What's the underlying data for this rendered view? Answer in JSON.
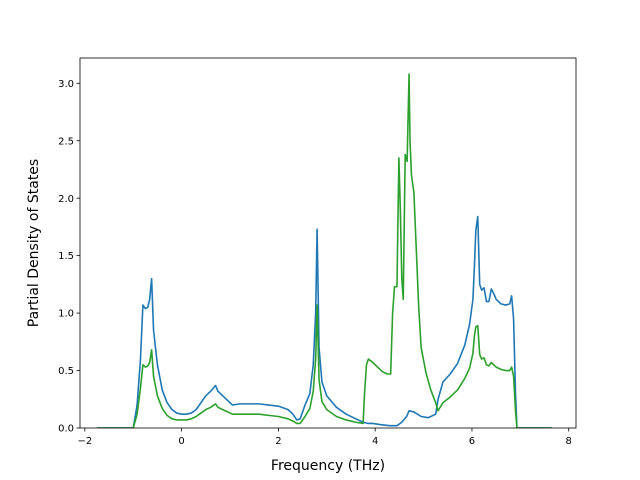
{
  "chart_data": {
    "type": "line",
    "title": "",
    "xlabel": "Frequency (THz)",
    "ylabel": "Partial Density of States",
    "xlim": [
      -2.1,
      8.15
    ],
    "ylim": [
      0,
      3.22
    ],
    "xticks": [
      -2,
      0,
      2,
      4,
      6,
      8
    ],
    "xtick_labels": [
      "−2",
      "0",
      "2",
      "4",
      "6",
      "8"
    ],
    "yticks": [
      0,
      0.5,
      1.0,
      1.5,
      2.0,
      2.5,
      3.0
    ],
    "ytick_labels": [
      "0.0",
      "0.5",
      "1.0",
      "1.5",
      "2.0",
      "2.5",
      "3.0"
    ],
    "grid": false,
    "legend": false,
    "series": [
      {
        "color": "#1f77b4",
        "points": [
          [
            -1.75,
            0.0
          ],
          [
            -1.0,
            0.0
          ],
          [
            -0.92,
            0.2
          ],
          [
            -0.85,
            0.6
          ],
          [
            -0.8,
            1.07
          ],
          [
            -0.75,
            1.04
          ],
          [
            -0.7,
            1.05
          ],
          [
            -0.66,
            1.12
          ],
          [
            -0.62,
            1.3
          ],
          [
            -0.58,
            0.85
          ],
          [
            -0.5,
            0.55
          ],
          [
            -0.4,
            0.33
          ],
          [
            -0.3,
            0.22
          ],
          [
            -0.2,
            0.16
          ],
          [
            -0.1,
            0.13
          ],
          [
            0.0,
            0.12
          ],
          [
            0.1,
            0.12
          ],
          [
            0.2,
            0.13
          ],
          [
            0.3,
            0.16
          ],
          [
            0.4,
            0.22
          ],
          [
            0.5,
            0.28
          ],
          [
            0.6,
            0.32
          ],
          [
            0.7,
            0.37
          ],
          [
            0.75,
            0.32
          ],
          [
            0.85,
            0.28
          ],
          [
            0.95,
            0.24
          ],
          [
            1.05,
            0.2
          ],
          [
            1.2,
            0.21
          ],
          [
            1.4,
            0.21
          ],
          [
            1.6,
            0.21
          ],
          [
            1.8,
            0.2
          ],
          [
            2.0,
            0.19
          ],
          [
            2.2,
            0.16
          ],
          [
            2.3,
            0.12
          ],
          [
            2.38,
            0.07
          ],
          [
            2.45,
            0.08
          ],
          [
            2.55,
            0.2
          ],
          [
            2.65,
            0.3
          ],
          [
            2.72,
            0.55
          ],
          [
            2.77,
            1.0
          ],
          [
            2.8,
            1.73
          ],
          [
            2.84,
            0.7
          ],
          [
            2.9,
            0.4
          ],
          [
            3.0,
            0.28
          ],
          [
            3.2,
            0.18
          ],
          [
            3.4,
            0.12
          ],
          [
            3.6,
            0.08
          ],
          [
            3.75,
            0.05
          ],
          [
            3.85,
            0.04
          ],
          [
            3.95,
            0.04
          ],
          [
            4.1,
            0.03
          ],
          [
            4.3,
            0.02
          ],
          [
            4.45,
            0.02
          ],
          [
            4.55,
            0.05
          ],
          [
            4.65,
            0.1
          ],
          [
            4.7,
            0.15
          ],
          [
            4.8,
            0.14
          ],
          [
            4.95,
            0.1
          ],
          [
            5.1,
            0.09
          ],
          [
            5.25,
            0.12
          ],
          [
            5.3,
            0.25
          ],
          [
            5.4,
            0.4
          ],
          [
            5.55,
            0.47
          ],
          [
            5.7,
            0.56
          ],
          [
            5.85,
            0.72
          ],
          [
            5.95,
            0.9
          ],
          [
            6.02,
            1.12
          ],
          [
            6.05,
            1.4
          ],
          [
            6.08,
            1.72
          ],
          [
            6.12,
            1.84
          ],
          [
            6.16,
            1.25
          ],
          [
            6.2,
            1.2
          ],
          [
            6.25,
            1.22
          ],
          [
            6.3,
            1.1
          ],
          [
            6.35,
            1.1
          ],
          [
            6.4,
            1.21
          ],
          [
            6.45,
            1.17
          ],
          [
            6.5,
            1.12
          ],
          [
            6.6,
            1.08
          ],
          [
            6.7,
            1.07
          ],
          [
            6.78,
            1.08
          ],
          [
            6.82,
            1.15
          ],
          [
            6.86,
            0.95
          ],
          [
            6.9,
            0.3
          ],
          [
            6.93,
            0.0
          ],
          [
            7.65,
            0.0
          ]
        ]
      },
      {
        "color": "#2ca02c",
        "points": [
          [
            -1.75,
            0.0
          ],
          [
            -1.0,
            0.0
          ],
          [
            -0.92,
            0.12
          ],
          [
            -0.85,
            0.35
          ],
          [
            -0.8,
            0.55
          ],
          [
            -0.75,
            0.53
          ],
          [
            -0.7,
            0.54
          ],
          [
            -0.66,
            0.57
          ],
          [
            -0.62,
            0.68
          ],
          [
            -0.58,
            0.45
          ],
          [
            -0.5,
            0.28
          ],
          [
            -0.4,
            0.17
          ],
          [
            -0.3,
            0.11
          ],
          [
            -0.2,
            0.08
          ],
          [
            -0.1,
            0.07
          ],
          [
            0.0,
            0.07
          ],
          [
            0.1,
            0.07
          ],
          [
            0.2,
            0.08
          ],
          [
            0.3,
            0.1
          ],
          [
            0.4,
            0.13
          ],
          [
            0.5,
            0.16
          ],
          [
            0.6,
            0.18
          ],
          [
            0.7,
            0.21
          ],
          [
            0.75,
            0.18
          ],
          [
            0.85,
            0.16
          ],
          [
            0.95,
            0.14
          ],
          [
            1.05,
            0.12
          ],
          [
            1.2,
            0.12
          ],
          [
            1.4,
            0.12
          ],
          [
            1.6,
            0.12
          ],
          [
            1.8,
            0.11
          ],
          [
            2.0,
            0.1
          ],
          [
            2.2,
            0.08
          ],
          [
            2.3,
            0.06
          ],
          [
            2.38,
            0.04
          ],
          [
            2.45,
            0.04
          ],
          [
            2.55,
            0.1
          ],
          [
            2.65,
            0.17
          ],
          [
            2.72,
            0.32
          ],
          [
            2.77,
            0.6
          ],
          [
            2.8,
            1.07
          ],
          [
            2.84,
            0.42
          ],
          [
            2.9,
            0.23
          ],
          [
            3.0,
            0.16
          ],
          [
            3.2,
            0.1
          ],
          [
            3.4,
            0.07
          ],
          [
            3.6,
            0.05
          ],
          [
            3.75,
            0.04
          ],
          [
            3.78,
            0.3
          ],
          [
            3.82,
            0.55
          ],
          [
            3.86,
            0.6
          ],
          [
            3.95,
            0.57
          ],
          [
            4.05,
            0.53
          ],
          [
            4.15,
            0.49
          ],
          [
            4.25,
            0.47
          ],
          [
            4.32,
            0.47
          ],
          [
            4.36,
            1.0
          ],
          [
            4.4,
            1.23
          ],
          [
            4.45,
            1.23
          ],
          [
            4.49,
            2.35
          ],
          [
            4.52,
            1.9
          ],
          [
            4.55,
            1.3
          ],
          [
            4.58,
            1.12
          ],
          [
            4.62,
            2.38
          ],
          [
            4.66,
            2.32
          ],
          [
            4.7,
            3.08
          ],
          [
            4.72,
            2.5
          ],
          [
            4.75,
            2.2
          ],
          [
            4.8,
            2.05
          ],
          [
            4.85,
            1.55
          ],
          [
            4.9,
            1.05
          ],
          [
            4.95,
            0.7
          ],
          [
            5.05,
            0.48
          ],
          [
            5.15,
            0.33
          ],
          [
            5.25,
            0.22
          ],
          [
            5.3,
            0.15
          ],
          [
            5.4,
            0.22
          ],
          [
            5.55,
            0.27
          ],
          [
            5.7,
            0.33
          ],
          [
            5.85,
            0.43
          ],
          [
            5.95,
            0.52
          ],
          [
            6.02,
            0.65
          ],
          [
            6.05,
            0.8
          ],
          [
            6.08,
            0.88
          ],
          [
            6.12,
            0.89
          ],
          [
            6.16,
            0.64
          ],
          [
            6.2,
            0.6
          ],
          [
            6.25,
            0.61
          ],
          [
            6.3,
            0.55
          ],
          [
            6.35,
            0.54
          ],
          [
            6.4,
            0.57
          ],
          [
            6.45,
            0.55
          ],
          [
            6.5,
            0.53
          ],
          [
            6.6,
            0.51
          ],
          [
            6.7,
            0.5
          ],
          [
            6.78,
            0.5
          ],
          [
            6.82,
            0.53
          ],
          [
            6.86,
            0.45
          ],
          [
            6.9,
            0.15
          ],
          [
            6.93,
            0.0
          ],
          [
            7.65,
            0.0
          ]
        ]
      }
    ]
  }
}
